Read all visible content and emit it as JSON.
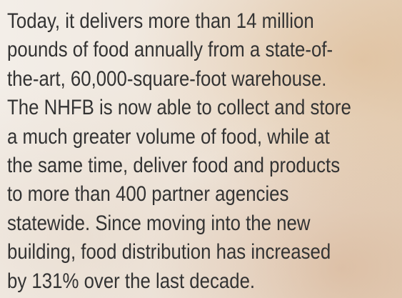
{
  "paragraph": {
    "lines": [
      "Today, it delivers more than 14 million",
      "pounds of food annually from a state-of-",
      "the-art, 60,000-square-foot warehouse.",
      "The NHFB is now able to collect and store",
      "a much greater volume of food, while at",
      "the same time, deliver food and products",
      "to more than 400 partner agencies",
      "statewide. Since moving into the new",
      "building, food distribution has increased",
      "by 131% over the last decade."
    ]
  }
}
